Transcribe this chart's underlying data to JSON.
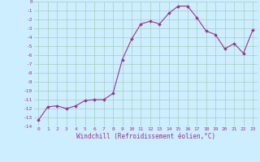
{
  "x_values": [
    0,
    1,
    2,
    3,
    4,
    5,
    6,
    7,
    8,
    9,
    10,
    11,
    12,
    13,
    14,
    15,
    16,
    17,
    18,
    19,
    20,
    21,
    22,
    23
  ],
  "y_values": [
    -13.3,
    -11.8,
    -11.7,
    -12.0,
    -11.7,
    -11.1,
    -11.0,
    -11.0,
    -10.3,
    -6.5,
    -4.2,
    -2.5,
    -2.2,
    -2.5,
    -1.3,
    -0.5,
    -0.5,
    -1.8,
    -3.3,
    -3.7,
    -5.3,
    -4.7,
    -5.8,
    -3.2
  ],
  "line_color": "#993399",
  "marker": "D",
  "markersize": 1.8,
  "linewidth": 0.8,
  "xlabel": "Windchill (Refroidissement éolien,°C)",
  "xlabel_fontsize": 5.5,
  "bg_color": "#cceeff",
  "grid_color": "#aaccbb",
  "tick_color": "#993399",
  "ylim": [
    -14,
    0
  ],
  "xlim": [
    -0.5,
    23.5
  ],
  "yticks": [
    0,
    -1,
    -2,
    -3,
    -4,
    -5,
    -6,
    -7,
    -8,
    -9,
    -10,
    -11,
    -12,
    -13,
    -14
  ],
  "xticks": [
    0,
    1,
    2,
    3,
    4,
    5,
    6,
    7,
    8,
    9,
    10,
    11,
    12,
    13,
    14,
    15,
    16,
    17,
    18,
    19,
    20,
    21,
    22,
    23
  ],
  "tick_fontsize": 4.5
}
